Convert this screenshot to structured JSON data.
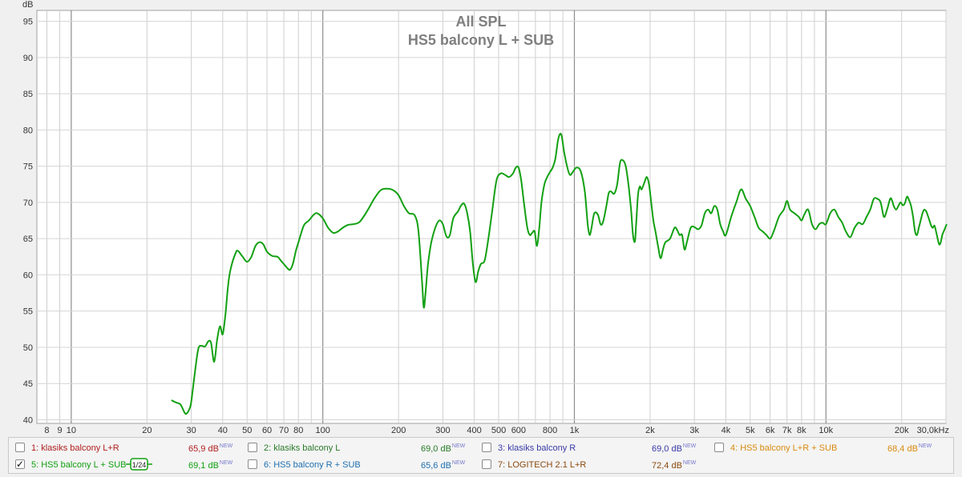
{
  "chart_data": {
    "type": "line",
    "title": "All SPL",
    "subtitle": "HS5 balcony  L + SUB",
    "ylabel": "dB",
    "xscale": "log",
    "xlim": [
      7.3,
      30000
    ],
    "ylim": [
      39.5,
      96.5
    ],
    "yticks": [
      40,
      45,
      50,
      55,
      60,
      65,
      70,
      75,
      80,
      85,
      90,
      95
    ],
    "xticks": [
      {
        "v": 8,
        "label": "8"
      },
      {
        "v": 9,
        "label": "9"
      },
      {
        "v": 10,
        "label": "10"
      },
      {
        "v": 20,
        "label": "20"
      },
      {
        "v": 30,
        "label": "30"
      },
      {
        "v": 40,
        "label": "40"
      },
      {
        "v": 50,
        "label": "50"
      },
      {
        "v": 60,
        "label": "60"
      },
      {
        "v": 70,
        "label": "70"
      },
      {
        "v": 80,
        "label": "80"
      },
      {
        "v": 100,
        "label": "100"
      },
      {
        "v": 200,
        "label": "200"
      },
      {
        "v": 300,
        "label": "300"
      },
      {
        "v": 400,
        "label": "400"
      },
      {
        "v": 500,
        "label": "500"
      },
      {
        "v": 600,
        "label": "600"
      },
      {
        "v": 800,
        "label": "800"
      },
      {
        "v": 1000,
        "label": "1k"
      },
      {
        "v": 2000,
        "label": "2k"
      },
      {
        "v": 3000,
        "label": "3k"
      },
      {
        "v": 4000,
        "label": "4k"
      },
      {
        "v": 5000,
        "label": "5k"
      },
      {
        "v": 6000,
        "label": "6k"
      },
      {
        "v": 7000,
        "label": "7k"
      },
      {
        "v": 8000,
        "label": "8k"
      },
      {
        "v": 10000,
        "label": "10k"
      },
      {
        "v": 20000,
        "label": "20k"
      },
      {
        "v": 30000,
        "label": "30,0kHz"
      }
    ],
    "grid": true,
    "series": [
      {
        "name": "HS5 balcony  L + SUB",
        "color": "#12a012",
        "points": [
          [
            25,
            42.7
          ],
          [
            26,
            42.4
          ],
          [
            27,
            42.2
          ],
          [
            27.5,
            41.8
          ],
          [
            28,
            41.2
          ],
          [
            28.5,
            40.8
          ],
          [
            29,
            41.0
          ],
          [
            29.5,
            41.5
          ],
          [
            30,
            42.5
          ],
          [
            31,
            46.5
          ],
          [
            32,
            49.8
          ],
          [
            33,
            50.2
          ],
          [
            34,
            50.1
          ],
          [
            35,
            50.8
          ],
          [
            35.5,
            50.9
          ],
          [
            36,
            50.5
          ],
          [
            37,
            48.0
          ],
          [
            38,
            51.0
          ],
          [
            39,
            52.9
          ],
          [
            40,
            51.8
          ],
          [
            41,
            54.5
          ],
          [
            42,
            58.5
          ],
          [
            43,
            60.8
          ],
          [
            45,
            63.0
          ],
          [
            46,
            63.3
          ],
          [
            48,
            62.5
          ],
          [
            50,
            61.8
          ],
          [
            52,
            62.5
          ],
          [
            54,
            64.0
          ],
          [
            56,
            64.5
          ],
          [
            58,
            64.2
          ],
          [
            60,
            63.2
          ],
          [
            63,
            62.6
          ],
          [
            66,
            62.5
          ],
          [
            68,
            62.0
          ],
          [
            72,
            61.0
          ],
          [
            74,
            60.7
          ],
          [
            76,
            61.5
          ],
          [
            78,
            63.2
          ],
          [
            80,
            64.5
          ],
          [
            84,
            66.8
          ],
          [
            88,
            67.5
          ],
          [
            92,
            68.3
          ],
          [
            95,
            68.5
          ],
          [
            100,
            67.8
          ],
          [
            105,
            66.5
          ],
          [
            110,
            65.8
          ],
          [
            115,
            66.0
          ],
          [
            120,
            66.5
          ],
          [
            126,
            66.9
          ],
          [
            132,
            67.0
          ],
          [
            140,
            67.3
          ],
          [
            150,
            68.8
          ],
          [
            160,
            70.5
          ],
          [
            170,
            71.7
          ],
          [
            180,
            71.9
          ],
          [
            190,
            71.7
          ],
          [
            200,
            71.0
          ],
          [
            210,
            69.5
          ],
          [
            220,
            68.5
          ],
          [
            232,
            68.2
          ],
          [
            240,
            66.0
          ],
          [
            248,
            59.0
          ],
          [
            252,
            55.5
          ],
          [
            256,
            57.5
          ],
          [
            262,
            61.5
          ],
          [
            270,
            64.5
          ],
          [
            280,
            66.5
          ],
          [
            290,
            67.5
          ],
          [
            300,
            67.0
          ],
          [
            310,
            65.3
          ],
          [
            320,
            65.5
          ],
          [
            330,
            67.8
          ],
          [
            345,
            68.8
          ],
          [
            355,
            69.6
          ],
          [
            365,
            69.8
          ],
          [
            375,
            68.5
          ],
          [
            385,
            66.0
          ],
          [
            395,
            61.5
          ],
          [
            405,
            59.0
          ],
          [
            415,
            60.5
          ],
          [
            425,
            61.5
          ],
          [
            440,
            62.0
          ],
          [
            455,
            65.0
          ],
          [
            470,
            68.5
          ],
          [
            490,
            73.0
          ],
          [
            510,
            74.0
          ],
          [
            530,
            73.8
          ],
          [
            550,
            73.5
          ],
          [
            570,
            74.0
          ],
          [
            585,
            74.8
          ],
          [
            600,
            74.8
          ],
          [
            615,
            73.0
          ],
          [
            630,
            70.0
          ],
          [
            650,
            66.5
          ],
          [
            665,
            65.5
          ],
          [
            680,
            65.8
          ],
          [
            695,
            66.0
          ],
          [
            710,
            64.0
          ],
          [
            725,
            66.5
          ],
          [
            740,
            70.0
          ],
          [
            760,
            72.5
          ],
          [
            780,
            73.5
          ],
          [
            800,
            74.2
          ],
          [
            820,
            74.8
          ],
          [
            840,
            76.0
          ],
          [
            860,
            78.5
          ],
          [
            875,
            79.4
          ],
          [
            890,
            79.2
          ],
          [
            910,
            77.0
          ],
          [
            935,
            75.0
          ],
          [
            960,
            73.8
          ],
          [
            990,
            74.3
          ],
          [
            1020,
            74.8
          ],
          [
            1060,
            74.3
          ],
          [
            1100,
            71.5
          ],
          [
            1130,
            67.0
          ],
          [
            1150,
            65.5
          ],
          [
            1170,
            66.5
          ],
          [
            1200,
            68.5
          ],
          [
            1240,
            68.3
          ],
          [
            1270,
            67.0
          ],
          [
            1300,
            67.3
          ],
          [
            1340,
            69.5
          ],
          [
            1370,
            71.3
          ],
          [
            1400,
            71.5
          ],
          [
            1440,
            71.2
          ],
          [
            1480,
            72.5
          ],
          [
            1520,
            75.5
          ],
          [
            1560,
            75.8
          ],
          [
            1600,
            75.0
          ],
          [
            1640,
            72.5
          ],
          [
            1680,
            69.0
          ],
          [
            1710,
            65.5
          ],
          [
            1740,
            64.6
          ],
          [
            1760,
            67.0
          ],
          [
            1790,
            71.0
          ],
          [
            1820,
            72.2
          ],
          [
            1850,
            71.8
          ],
          [
            1900,
            72.8
          ],
          [
            1940,
            73.5
          ],
          [
            1980,
            72.5
          ],
          [
            2020,
            70.0
          ],
          [
            2060,
            67.5
          ],
          [
            2100,
            66.0
          ],
          [
            2150,
            64.0
          ],
          [
            2200,
            62.3
          ],
          [
            2250,
            63.5
          ],
          [
            2300,
            64.5
          ],
          [
            2400,
            65.0
          ],
          [
            2500,
            66.5
          ],
          [
            2560,
            66.2
          ],
          [
            2620,
            65.5
          ],
          [
            2680,
            65.5
          ],
          [
            2740,
            63.5
          ],
          [
            2800,
            64.5
          ],
          [
            2900,
            66.5
          ],
          [
            3000,
            66.6
          ],
          [
            3100,
            66.3
          ],
          [
            3200,
            66.8
          ],
          [
            3300,
            68.5
          ],
          [
            3400,
            69.0
          ],
          [
            3500,
            68.5
          ],
          [
            3600,
            69.5
          ],
          [
            3700,
            69.0
          ],
          [
            3800,
            67.0
          ],
          [
            3900,
            66.0
          ],
          [
            4000,
            65.5
          ],
          [
            4200,
            68.0
          ],
          [
            4400,
            70.0
          ],
          [
            4600,
            71.8
          ],
          [
            4800,
            70.5
          ],
          [
            5000,
            69.5
          ],
          [
            5200,
            68.0
          ],
          [
            5400,
            66.5
          ],
          [
            5600,
            66.0
          ],
          [
            5800,
            65.5
          ],
          [
            6000,
            65.0
          ],
          [
            6200,
            66.0
          ],
          [
            6500,
            68.0
          ],
          [
            6800,
            69.0
          ],
          [
            7000,
            70.2
          ],
          [
            7200,
            69.0
          ],
          [
            7500,
            68.5
          ],
          [
            7800,
            68.0
          ],
          [
            8000,
            67.5
          ],
          [
            8200,
            68.3
          ],
          [
            8500,
            69.0
          ],
          [
            8800,
            67.0
          ],
          [
            9100,
            66.3
          ],
          [
            9400,
            67.0
          ],
          [
            9700,
            67.2
          ],
          [
            10000,
            67.0
          ],
          [
            10400,
            68.5
          ],
          [
            10800,
            69.0
          ],
          [
            11200,
            68.0
          ],
          [
            11600,
            67.2
          ],
          [
            12000,
            66.0
          ],
          [
            12500,
            65.2
          ],
          [
            13000,
            66.5
          ],
          [
            13500,
            67.2
          ],
          [
            14000,
            67.0
          ],
          [
            14500,
            68.0
          ],
          [
            15000,
            69.0
          ],
          [
            15500,
            70.5
          ],
          [
            16000,
            70.5
          ],
          [
            16500,
            70.0
          ],
          [
            17000,
            68.0
          ],
          [
            17500,
            69.0
          ],
          [
            18000,
            70.5
          ],
          [
            18300,
            70.3
          ],
          [
            18600,
            69.5
          ],
          [
            19000,
            69.0
          ],
          [
            19400,
            69.5
          ],
          [
            19800,
            70.0
          ],
          [
            20200,
            69.6
          ],
          [
            20600,
            69.9
          ],
          [
            21000,
            70.8
          ],
          [
            21400,
            70.3
          ],
          [
            21800,
            69.5
          ],
          [
            22200,
            68.0
          ],
          [
            22600,
            66.0
          ],
          [
            23000,
            65.5
          ],
          [
            23400,
            66.5
          ],
          [
            23800,
            67.5
          ],
          [
            24200,
            68.5
          ],
          [
            24600,
            69.0
          ],
          [
            25000,
            68.8
          ],
          [
            25400,
            68.2
          ],
          [
            25800,
            67.5
          ],
          [
            26200,
            66.8
          ],
          [
            26600,
            66.5
          ],
          [
            27000,
            66.8
          ],
          [
            27400,
            66.0
          ],
          [
            27800,
            65.0
          ],
          [
            28200,
            64.2
          ],
          [
            28600,
            64.5
          ],
          [
            29000,
            65.5
          ],
          [
            29400,
            66.0
          ],
          [
            29800,
            66.5
          ],
          [
            30200,
            67.0
          ]
        ]
      }
    ]
  },
  "legend": {
    "items": [
      {
        "id": "1",
        "label": "1: klasiks balcony L+R",
        "value": "65,9 dB",
        "badge": "NEW",
        "color": "#b02020",
        "checked": false
      },
      {
        "id": "2",
        "label": "2: klasiks balcony L",
        "value": "69,0 dB",
        "badge": "NEW",
        "color": "#2a7a2a",
        "checked": false
      },
      {
        "id": "3",
        "label": "3: klasiks balcony R",
        "value": "69,0 dB",
        "badge": "NEW",
        "color": "#3a3aa8",
        "checked": false
      },
      {
        "id": "4",
        "label": "4: HS5 balcony L+R + SUB",
        "value": "68,4 dB",
        "badge": "NEW",
        "color": "#d98a10",
        "checked": false
      },
      {
        "id": "5",
        "label": "5: HS5 balcony  L + SUB",
        "value": "69,1 dB",
        "badge": "NEW",
        "color": "#12a012",
        "checked": true,
        "smoothing": "1/24"
      },
      {
        "id": "6",
        "label": "6: HS5 balcony R + SUB",
        "value": "65,6 dB",
        "badge": "NEW",
        "color": "#2070b0",
        "checked": false
      },
      {
        "id": "7",
        "label": "7: LOGITECH 2.1 L+R",
        "value": "72,4 dB",
        "badge": "NEW",
        "color": "#8a4a10",
        "checked": false
      }
    ]
  }
}
